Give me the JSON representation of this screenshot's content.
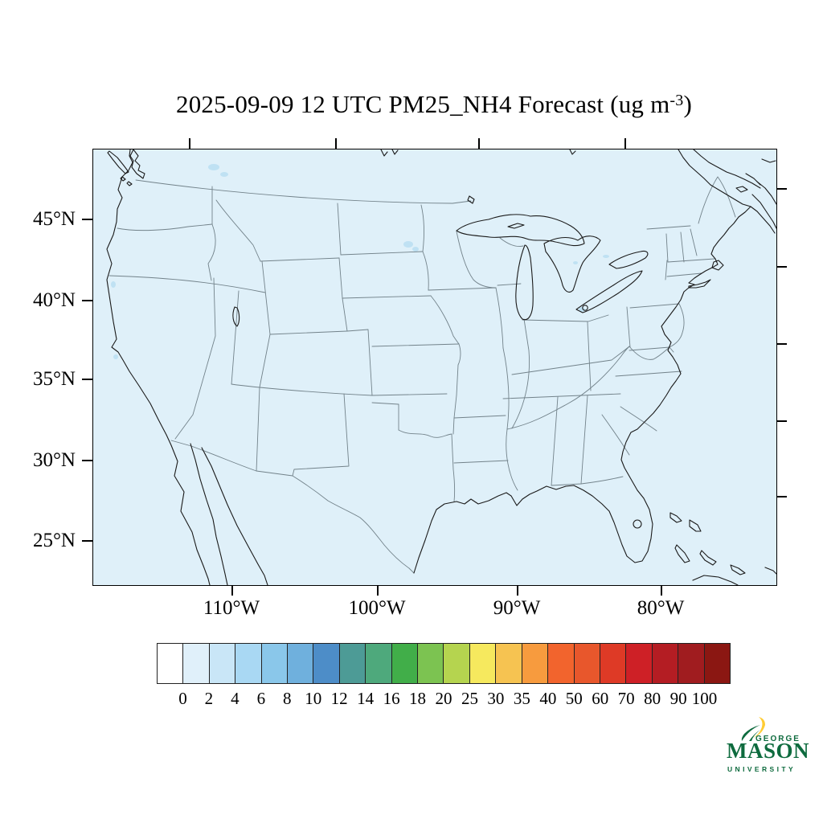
{
  "title": {
    "prefix": "2025-09-09 12 UTC PM25_NH4 Forecast (ug m",
    "superscript": "-3",
    "suffix": ")"
  },
  "map": {
    "lat_labels": [
      "45°N",
      "40°N",
      "35°N",
      "30°N",
      "25°N"
    ],
    "lon_labels": [
      "110°W",
      "100°W",
      "90°W",
      "80°W"
    ],
    "fill_color": "#DFF0F9",
    "coastline_color": "#1a1a1a",
    "state_line_color": "#72828a",
    "data_patch_color": "#BFE1F3",
    "frame_color": "#000000"
  },
  "colorbar": {
    "labels": [
      "0",
      "2",
      "4",
      "6",
      "8",
      "10",
      "12",
      "14",
      "16",
      "18",
      "20",
      "25",
      "30",
      "35",
      "40",
      "50",
      "60",
      "70",
      "80",
      "90",
      "100"
    ],
    "colors": [
      "#FFFFFF",
      "#E0F0FA",
      "#C9E6F7",
      "#A9D8F3",
      "#8AC7EA",
      "#6FB0DD",
      "#4D8DC8",
      "#4D9B96",
      "#4EA97C",
      "#41AE49",
      "#7CC351",
      "#B5D44F",
      "#F6E95E",
      "#F6C351",
      "#F79B3E",
      "#F2642D",
      "#E8572C",
      "#DE3A26",
      "#CE2026",
      "#B41D23",
      "#A01C1F",
      "#8B1712"
    ]
  },
  "logo": {
    "line1": "GEORGE",
    "line2": "MASON",
    "line3": "UNIVERSITY",
    "green": "#0e6b3e",
    "gold": "#FFCC33"
  },
  "chart_data": {
    "type": "heatmap",
    "title": "2025-09-09 12 UTC PM25_NH4 Forecast (ug m-3)",
    "field": "PM25_NH4",
    "units": "ug m-3",
    "valid_time": "2025-09-09 12 UTC",
    "region": "Contiguous United States with parts of Canada, Mexico, Cuba and the Bahamas",
    "lat_ticks_deg_n": [
      45,
      40,
      35,
      30,
      25
    ],
    "lon_ticks_deg_w": [
      110,
      100,
      90,
      80
    ],
    "colorbar_levels": [
      0,
      2,
      4,
      6,
      8,
      10,
      12,
      14,
      16,
      18,
      20,
      25,
      30,
      35,
      40,
      50,
      60,
      70,
      80,
      90,
      100
    ],
    "colorbar_colors": [
      "#FFFFFF",
      "#E0F0FA",
      "#C9E6F7",
      "#A9D8F3",
      "#8AC7EA",
      "#6FB0DD",
      "#4D8DC8",
      "#4D9B96",
      "#4EA97C",
      "#41AE49",
      "#7CC351",
      "#B5D44F",
      "#F6E95E",
      "#F6C351",
      "#F79B3E",
      "#F2642D",
      "#E8572C",
      "#DE3A26",
      "#CE2026",
      "#B41D23",
      "#A01C1F",
      "#8B1712"
    ],
    "field_summary": "Forecast PM2.5 ammonium concentration is in the lowest 0-2 ug m-3 bin (uniform pale blue) over virtually the entire domain, with a few isolated 2-4 ug m-3 patches (southern Canada, North Dakota/Minnesota, coastal California, near Lake St. Clair / Lake Erie)."
  }
}
